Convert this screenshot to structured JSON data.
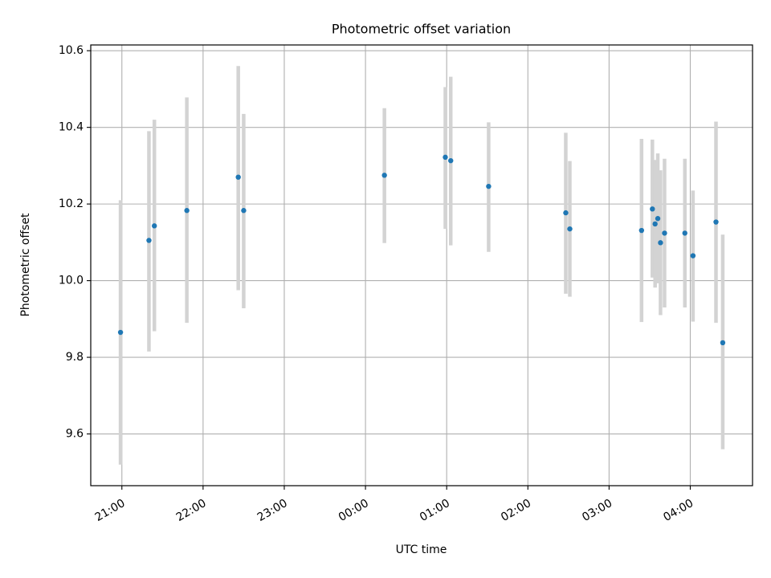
{
  "chart_data": {
    "type": "scatter",
    "title": "Photometric offset variation",
    "xlabel": "UTC time",
    "ylabel": "Photometric offset",
    "x_axis": {
      "kind": "time",
      "range": [
        "20:37",
        "04:46"
      ],
      "ticks": [
        "21:00",
        "22:00",
        "23:00",
        "00:00",
        "01:00",
        "02:00",
        "03:00",
        "04:00"
      ]
    },
    "y_axis": {
      "range": [
        9.465,
        10.615
      ],
      "ticks": [
        9.6,
        9.8,
        10.0,
        10.2,
        10.4,
        10.6
      ],
      "tick_labels": [
        "9.6",
        "9.8",
        "10.0",
        "10.2",
        "10.4",
        "10.6"
      ]
    },
    "grid": true,
    "series": [
      {
        "marker_color": "#1f77b4",
        "errorbar_color": "#d3d3d3",
        "points": [
          {
            "x": "20:59",
            "y": 9.865,
            "yerr_low": 9.52,
            "yerr_high": 10.21
          },
          {
            "x": "21:20",
            "y": 10.105,
            "yerr_low": 9.815,
            "yerr_high": 10.39
          },
          {
            "x": "21:24",
            "y": 10.143,
            "yerr_low": 9.868,
            "yerr_high": 10.42
          },
          {
            "x": "21:48",
            "y": 10.183,
            "yerr_low": 9.89,
            "yerr_high": 10.478
          },
          {
            "x": "22:26",
            "y": 10.27,
            "yerr_low": 9.975,
            "yerr_high": 10.56
          },
          {
            "x": "22:30",
            "y": 10.183,
            "yerr_low": 9.928,
            "yerr_high": 10.435
          },
          {
            "x": "00:14",
            "y": 10.275,
            "yerr_low": 10.098,
            "yerr_high": 10.45
          },
          {
            "x": "00:59",
            "y": 10.322,
            "yerr_low": 10.135,
            "yerr_high": 10.505
          },
          {
            "x": "01:03",
            "y": 10.313,
            "yerr_low": 10.092,
            "yerr_high": 10.532
          },
          {
            "x": "01:31",
            "y": 10.246,
            "yerr_low": 10.075,
            "yerr_high": 10.413
          },
          {
            "x": "02:28",
            "y": 10.177,
            "yerr_low": 9.966,
            "yerr_high": 10.386
          },
          {
            "x": "02:31",
            "y": 10.135,
            "yerr_low": 9.958,
            "yerr_high": 10.312
          },
          {
            "x": "03:24",
            "y": 10.131,
            "yerr_low": 9.892,
            "yerr_high": 10.37
          },
          {
            "x": "03:32",
            "y": 10.187,
            "yerr_low": 10.008,
            "yerr_high": 10.368
          },
          {
            "x": "03:34",
            "y": 10.148,
            "yerr_low": 9.982,
            "yerr_high": 10.315
          },
          {
            "x": "03:36",
            "y": 10.162,
            "yerr_low": 9.993,
            "yerr_high": 10.332
          },
          {
            "x": "03:38",
            "y": 10.099,
            "yerr_low": 9.91,
            "yerr_high": 10.288
          },
          {
            "x": "03:41",
            "y": 10.124,
            "yerr_low": 9.93,
            "yerr_high": 10.318
          },
          {
            "x": "03:56",
            "y": 10.124,
            "yerr_low": 9.93,
            "yerr_high": 10.318
          },
          {
            "x": "04:02",
            "y": 10.065,
            "yerr_low": 9.893,
            "yerr_high": 10.235
          },
          {
            "x": "04:19",
            "y": 10.153,
            "yerr_low": 9.89,
            "yerr_high": 10.415
          },
          {
            "x": "04:24",
            "y": 9.838,
            "yerr_low": 9.56,
            "yerr_high": 10.12
          }
        ]
      }
    ]
  }
}
